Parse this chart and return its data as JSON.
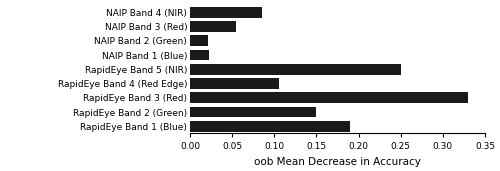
{
  "categories": [
    "RapidEye Band 1 (Blue)",
    "RapidEye Band 2 (Green)",
    "RapidEye Band 3 (Red)",
    "RapidEye Band 4 (Red Edge)",
    "RapidEye Band 5 (NIR)",
    "NAIP Band 1 (Blue)",
    "NAIP Band 2 (Green)",
    "NAIP Band 3 (Red)",
    "NAIP Band 4 (NIR)"
  ],
  "values": [
    0.19,
    0.15,
    0.33,
    0.105,
    0.25,
    0.022,
    0.021,
    0.055,
    0.085
  ],
  "bar_color": "#1a1a1a",
  "xlabel": "oob Mean Decrease in Accuracy",
  "xlim": [
    0,
    0.35
  ],
  "xticks": [
    0.0,
    0.05,
    0.1,
    0.15,
    0.2,
    0.25,
    0.3,
    0.35
  ],
  "xtick_labels": [
    "0.00",
    "0.05",
    "0.10",
    "0.15",
    "0.20",
    "0.25",
    "0.30",
    "0.35"
  ],
  "bar_height": 0.75,
  "figsize": [
    5.0,
    1.71
  ],
  "dpi": 100,
  "label_fontsize": 6.5,
  "xlabel_fontsize": 7.5,
  "tick_fontsize": 6.5
}
